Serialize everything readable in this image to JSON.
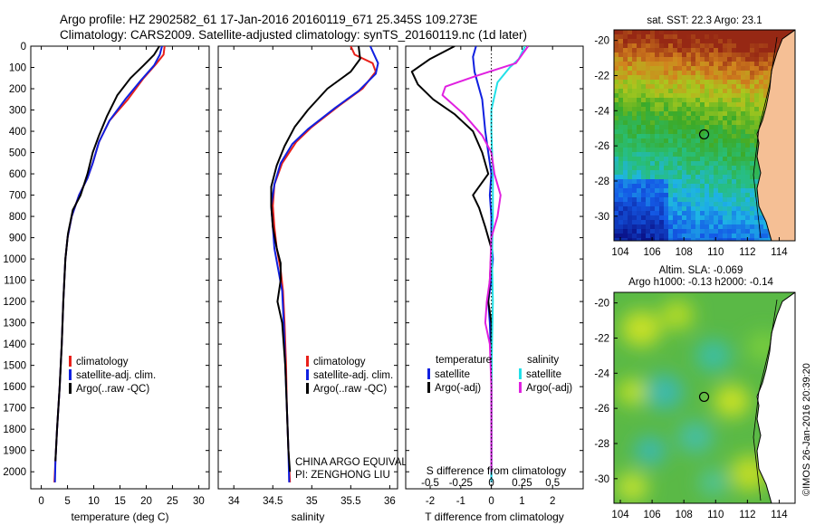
{
  "header": {
    "line1": "Argo profile: HZ 2902582_61 17-Jan-2016 20160119_671 25.345S 109.273E",
    "line2": "Climatology: CARS2009. Satellite-adjusted climatology: synTS_20160119.nc (1d later)"
  },
  "colors": {
    "climatology": "#e8201a",
    "satellite": "#1020e0",
    "argo": "#000000",
    "sat_salinity": "#22e0e8",
    "argo_salinity": "#e020e0"
  },
  "chart_data": [
    {
      "id": "temperature",
      "type": "line",
      "xlabel": "temperature (deg C)",
      "ylabel": "",
      "xlim": [
        -2,
        32
      ],
      "ylim": [
        2080,
        0
      ],
      "xticks": [
        0,
        5,
        10,
        15,
        20,
        25,
        30
      ],
      "yticks": [
        0,
        100,
        200,
        300,
        400,
        500,
        600,
        700,
        800,
        900,
        1000,
        1100,
        1200,
        1300,
        1400,
        1500,
        1600,
        1700,
        1800,
        1900,
        2000
      ],
      "legend": [
        "climatology",
        "satellite-adj. clim.",
        "Argo(..raw -QC)"
      ],
      "series": [
        {
          "name": "climatology",
          "color": "#e8201a",
          "points": [
            [
              23.5,
              0
            ],
            [
              23.3,
              40
            ],
            [
              22,
              80
            ],
            [
              19.5,
              150
            ],
            [
              16.5,
              250
            ],
            [
              13,
              350
            ],
            [
              11,
              450
            ],
            [
              9.8,
              550
            ],
            [
              8.8,
              620
            ],
            [
              7.2,
              700
            ],
            [
              5.8,
              800
            ],
            [
              5,
              900
            ],
            [
              4.6,
              1000
            ],
            [
              4.2,
              1200
            ],
            [
              3.9,
              1400
            ],
            [
              3.5,
              1600
            ],
            [
              3,
              1800
            ],
            [
              2.7,
              1950
            ],
            [
              2.5,
              2050
            ]
          ]
        },
        {
          "name": "satellite-adj. clim.",
          "color": "#1020e0",
          "points": [
            [
              23,
              0
            ],
            [
              22.6,
              40
            ],
            [
              21.5,
              90
            ],
            [
              19,
              160
            ],
            [
              16,
              250
            ],
            [
              13,
              350
            ],
            [
              11,
              450
            ],
            [
              9.8,
              550
            ],
            [
              8.8,
              620
            ],
            [
              7.2,
              700
            ],
            [
              5.8,
              800
            ],
            [
              5,
              900
            ],
            [
              4.6,
              1000
            ],
            [
              4.2,
              1200
            ],
            [
              3.9,
              1400
            ],
            [
              3.5,
              1600
            ],
            [
              3,
              1800
            ],
            [
              2.7,
              1950
            ],
            [
              2.6,
              2050
            ]
          ]
        },
        {
          "name": "Argo(..raw -QC)",
          "color": "#000000",
          "points": [
            [
              22.5,
              0
            ],
            [
              21.5,
              40
            ],
            [
              19.5,
              90
            ],
            [
              17,
              150
            ],
            [
              14.5,
              230
            ],
            [
              12.5,
              330
            ],
            [
              11,
              420
            ],
            [
              9.8,
              500
            ],
            [
              8.8,
              600
            ],
            [
              7.5,
              700
            ],
            [
              6,
              770
            ],
            [
              5.1,
              880
            ],
            [
              4.6,
              1000
            ],
            [
              4.2,
              1200
            ],
            [
              3.9,
              1400
            ],
            [
              3.5,
              1600
            ],
            [
              3,
              1800
            ],
            [
              2.7,
              1950
            ]
          ]
        }
      ]
    },
    {
      "id": "salinity",
      "type": "line",
      "xlabel": "salinity",
      "ylabel": "",
      "xlim": [
        33.8,
        36.1
      ],
      "ylim": [
        2080,
        0
      ],
      "xticks": [
        34,
        34.5,
        35,
        35.5,
        36
      ],
      "xtick_labels": [
        "34",
        "34.5",
        "35",
        "35.5",
        "36"
      ],
      "legend": [
        "climatology",
        "satellite-adj. clim.",
        "Argo(..raw -QC)"
      ],
      "annotation": [
        "CHINA ARGO EQUIVALENT",
        "PI: ZENGHONG LIU"
      ],
      "series": [
        {
          "name": "climatology",
          "color": "#e8201a",
          "points": [
            [
              35.5,
              0
            ],
            [
              35.55,
              40
            ],
            [
              35.78,
              80
            ],
            [
              35.82,
              120
            ],
            [
              35.65,
              200
            ],
            [
              35.35,
              280
            ],
            [
              35,
              380
            ],
            [
              34.8,
              450
            ],
            [
              34.62,
              550
            ],
            [
              34.52,
              650
            ],
            [
              34.5,
              750
            ],
            [
              34.52,
              850
            ],
            [
              34.55,
              950
            ],
            [
              34.6,
              1050
            ],
            [
              34.63,
              1150
            ],
            [
              34.65,
              1300
            ],
            [
              34.67,
              1500
            ],
            [
              34.68,
              1700
            ],
            [
              34.7,
              1900
            ],
            [
              34.72,
              2050
            ]
          ]
        },
        {
          "name": "satellite-adj. clim.",
          "color": "#1020e0",
          "points": [
            [
              35.75,
              0
            ],
            [
              35.8,
              40
            ],
            [
              35.85,
              80
            ],
            [
              35.82,
              130
            ],
            [
              35.6,
              210
            ],
            [
              35.3,
              290
            ],
            [
              34.95,
              390
            ],
            [
              34.75,
              460
            ],
            [
              34.6,
              550
            ],
            [
              34.52,
              650
            ],
            [
              34.48,
              750
            ],
            [
              34.5,
              850
            ],
            [
              34.52,
              950
            ],
            [
              34.57,
              1050
            ],
            [
              34.62,
              1150
            ],
            [
              34.64,
              1300
            ],
            [
              34.66,
              1500
            ],
            [
              34.68,
              1700
            ],
            [
              34.7,
              1900
            ],
            [
              34.71,
              2050
            ]
          ]
        },
        {
          "name": "Argo(..raw -QC)",
          "color": "#000000",
          "points": [
            [
              35.6,
              0
            ],
            [
              35.62,
              60
            ],
            [
              35.5,
              120
            ],
            [
              35.2,
              200
            ],
            [
              34.95,
              300
            ],
            [
              34.78,
              380
            ],
            [
              34.65,
              470
            ],
            [
              34.55,
              560
            ],
            [
              34.48,
              660
            ],
            [
              34.48,
              750
            ],
            [
              34.5,
              850
            ],
            [
              34.55,
              950
            ],
            [
              34.6,
              1020
            ],
            [
              34.6,
              1100
            ],
            [
              34.56,
              1200
            ],
            [
              34.62,
              1300
            ],
            [
              34.66,
              1500
            ],
            [
              34.68,
              1700
            ],
            [
              34.7,
              1900
            ],
            [
              34.72,
              2000
            ]
          ]
        }
      ]
    },
    {
      "id": "difference",
      "type": "line",
      "xlabel": "T difference from climatology",
      "top_label": "S difference from climatology",
      "ylabel": "",
      "xlim": [
        -2.8,
        3
      ],
      "ylim": [
        2080,
        0
      ],
      "xticks": [
        -2,
        -1,
        0,
        1,
        2
      ],
      "s_ticks": [
        -0.5,
        -0.25,
        0,
        0.25,
        0.5
      ],
      "s_tick_labels": [
        "-0.5",
        "-0.25",
        "0",
        "0.25",
        "0.5"
      ],
      "legend_temperature": {
        "title": "temperature",
        "items": [
          "satellite",
          "Argo(-adj)"
        ]
      },
      "legend_salinity": {
        "title": "salinity",
        "items": [
          "satellite",
          "Argo(-adj)"
        ]
      },
      "series": [
        {
          "name": "T satellite",
          "color": "#1020e0",
          "points": [
            [
              -0.5,
              0
            ],
            [
              -0.6,
              50
            ],
            [
              -0.55,
              120
            ],
            [
              -0.3,
              250
            ],
            [
              -0.2,
              400
            ],
            [
              -0.1,
              500
            ],
            [
              0,
              600
            ],
            [
              -0.05,
              700
            ],
            [
              0,
              800
            ],
            [
              0,
              900
            ],
            [
              0.05,
              1000
            ],
            [
              0,
              1100
            ],
            [
              -0.1,
              1200
            ],
            [
              -0.05,
              1300
            ],
            [
              0,
              1500
            ],
            [
              0,
              2050
            ]
          ]
        },
        {
          "name": "T Argo(-adj)",
          "color": "#000000",
          "points": [
            [
              -1.2,
              0
            ],
            [
              -2,
              60
            ],
            [
              -2.6,
              120
            ],
            [
              -2.4,
              180
            ],
            [
              -1.9,
              250
            ],
            [
              -1.2,
              320
            ],
            [
              -0.6,
              400
            ],
            [
              -0.3,
              500
            ],
            [
              -0.1,
              600
            ],
            [
              -0.6,
              700
            ],
            [
              -0.4,
              760
            ],
            [
              -0.2,
              850
            ],
            [
              0,
              950
            ],
            [
              -0.05,
              1100
            ],
            [
              -0.1,
              1200
            ],
            [
              0,
              1300
            ],
            [
              0,
              2000
            ]
          ]
        },
        {
          "name": "S satellite",
          "color": "#22e0e8",
          "points": [
            [
              1.1,
              0
            ],
            [
              0.9,
              60
            ],
            [
              0.6,
              100
            ],
            [
              0.2,
              170
            ],
            [
              0,
              300
            ],
            [
              0,
              400
            ],
            [
              0.05,
              600
            ],
            [
              0.05,
              800
            ],
            [
              0.02,
              1000
            ],
            [
              0.05,
              1200
            ],
            [
              0.02,
              1400
            ],
            [
              0,
              1600
            ],
            [
              0,
              2050
            ]
          ]
        },
        {
          "name": "S Argo(-adj)",
          "color": "#e020e0",
          "points": [
            [
              1.2,
              0
            ],
            [
              0.8,
              80
            ],
            [
              -0.5,
              140
            ],
            [
              -1.5,
              190
            ],
            [
              -1.6,
              230
            ],
            [
              -0.9,
              320
            ],
            [
              -0.3,
              420
            ],
            [
              0,
              500
            ],
            [
              0.1,
              600
            ],
            [
              0.3,
              700
            ],
            [
              0.2,
              800
            ],
            [
              0,
              900
            ],
            [
              -0.05,
              1100
            ],
            [
              -0.15,
              1200
            ],
            [
              -0.2,
              1300
            ],
            [
              -0.05,
              1400
            ],
            [
              0,
              1600
            ],
            [
              0,
              2000
            ]
          ]
        }
      ]
    },
    {
      "id": "sst_map",
      "type": "heatmap",
      "title": "sat. SST: 22.3 Argo: 23.1",
      "xlim": [
        103.6,
        115
      ],
      "ylim": [
        -31.4,
        -19.4
      ],
      "xticks": [
        104,
        106,
        108,
        110,
        112,
        114
      ],
      "yticks": [
        -20,
        -22,
        -24,
        -26,
        -28,
        -30
      ],
      "argo_position": [
        109.273,
        -25.345
      ]
    },
    {
      "id": "sla_map",
      "type": "heatmap",
      "title_line1": "Altim. SLA: -0.069",
      "title_line2": "Argo h1000: -0.13 h2000: -0.14",
      "xlim": [
        103.6,
        115
      ],
      "ylim": [
        -31.4,
        -19.4
      ],
      "xticks": [
        104,
        106,
        108,
        110,
        112,
        114
      ],
      "yticks": [
        -20,
        -22,
        -24,
        -26,
        -28,
        -30
      ],
      "argo_position": [
        109.273,
        -25.345
      ]
    }
  ],
  "credit": "©IMOS 26-Jan-2016 20:39:20"
}
